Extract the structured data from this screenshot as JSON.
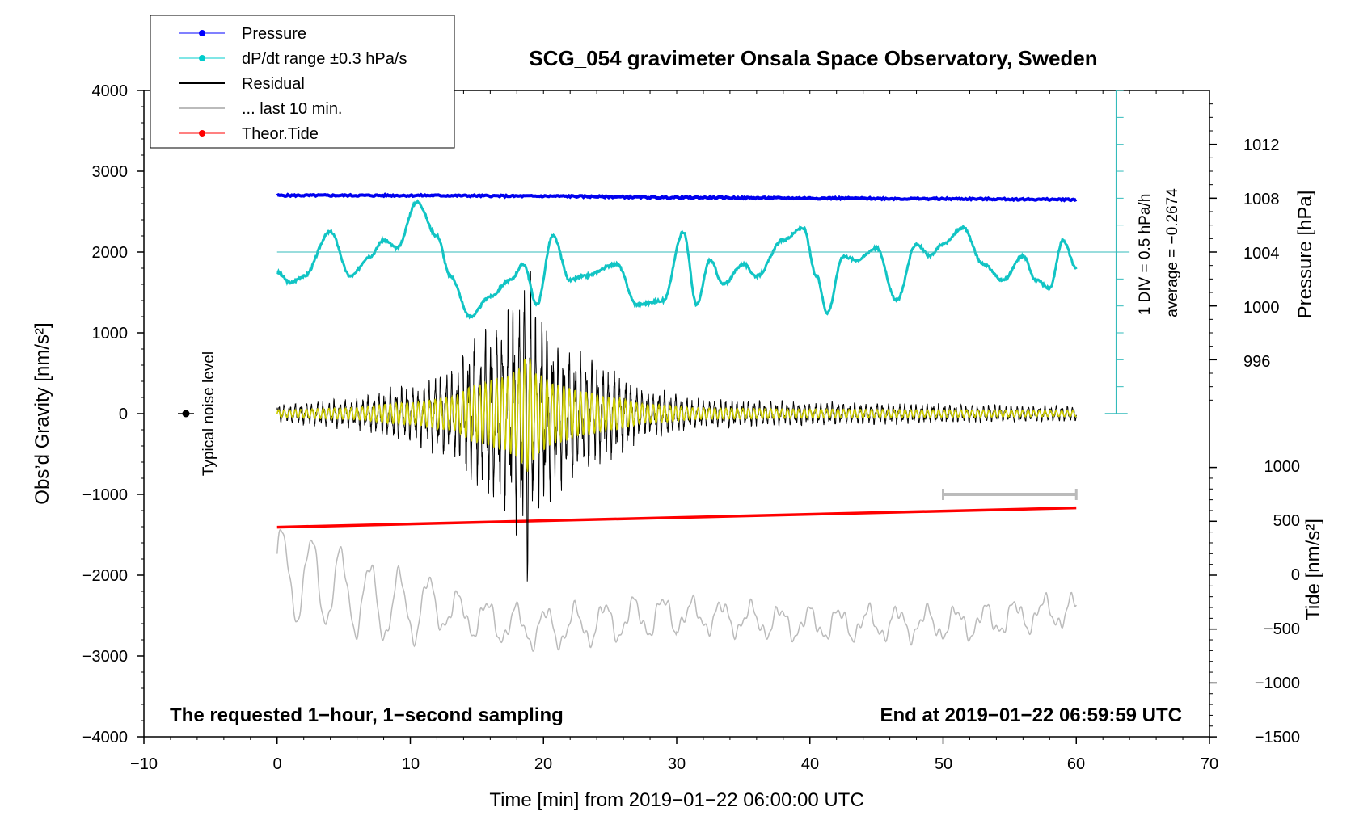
{
  "chart_data": {
    "type": "line",
    "title": "SCG_054 gravimeter Onsala Space Observatory, Sweden",
    "xlabel": "Time [min] from 2019−01−22 06:00:00 UTC",
    "ylabel": "Obs’d Gravity [nm/s²]",
    "xlim": [
      -10,
      70
    ],
    "ylim": [
      -4000,
      4000
    ],
    "x_ticks": [
      "−10",
      "0",
      "10",
      "20",
      "30",
      "40",
      "50",
      "60",
      "70"
    ],
    "y_ticks": [
      "−4000",
      "−3000",
      "−2000",
      "−1000",
      "0",
      "1000",
      "2000",
      "3000",
      "4000"
    ],
    "pressure_axis": {
      "label": "Pressure [hPa]",
      "ticks": [
        "996",
        "1000",
        "1004",
        "1008",
        "1012"
      ],
      "note_div": "1 DIV = 0.5 hPa/h",
      "note_avg": "average = −0.2674"
    },
    "tide_axis": {
      "label": "Tide [nm/s²]",
      "ticks": [
        "−1500",
        "−1000",
        "−500",
        "0",
        "500",
        "1000"
      ]
    },
    "legend": [
      {
        "label": "Pressure",
        "color": "#0000ff",
        "marker": true
      },
      {
        "label": "dP/dt range ±0.3 hPa/s",
        "color": "#00cccc",
        "marker": true
      },
      {
        "label": "Residual",
        "color": "#000000",
        "marker": false
      },
      {
        "label": "... last 10 min.",
        "color": "#bbbbbb",
        "marker": false
      },
      {
        "label": "Theor.Tide",
        "color": "#ff0000",
        "marker": true
      }
    ],
    "noise_label": "Typical noise level",
    "footer_left": "The requested 1−hour, 1−second sampling",
    "footer_right": "End at 2019−01−22 06:59:59 UTC",
    "series": [
      {
        "name": "Pressure",
        "unit": "hPa",
        "x": [
          0,
          10,
          20,
          30,
          40,
          50,
          60
        ],
        "values": [
          1008.2,
          1008.2,
          1008.15,
          1008.05,
          1008.0,
          1007.95,
          1007.9
        ]
      },
      {
        "name": "dP/dt",
        "unit": "nm/s² (plot units)",
        "x": [
          0,
          1,
          2,
          4,
          5.5,
          7,
          8,
          9,
          10.5,
          12,
          13,
          14.5,
          16,
          17.5,
          18.5,
          19.5,
          20.7,
          22,
          23,
          25.5,
          27,
          29,
          30.5,
          31.5,
          32.5,
          33.5,
          35,
          36,
          38,
          39.5,
          40.5,
          41.3,
          42.5,
          43.5,
          45,
          46.5,
          48,
          49,
          50,
          51.5,
          53,
          54.5,
          56,
          57,
          58,
          59,
          60
        ],
        "values": [
          1750,
          1620,
          1700,
          2250,
          1700,
          1950,
          2150,
          2050,
          2620,
          2200,
          1700,
          1200,
          1450,
          1650,
          1850,
          1350,
          2200,
          1650,
          1700,
          1850,
          1350,
          1400,
          2250,
          1350,
          1900,
          1600,
          1850,
          1700,
          2150,
          2300,
          1700,
          1250,
          1950,
          1900,
          2050,
          1400,
          2100,
          1950,
          2100,
          2300,
          1850,
          1650,
          1950,
          1650,
          1550,
          2150,
          1800
        ]
      },
      {
        "name": "Residual (amplitude envelope)",
        "unit": "nm/s²",
        "x": [
          0,
          5,
          10,
          13,
          15,
          17,
          18,
          18.8,
          19.5,
          21,
          23,
          25,
          28,
          32,
          40,
          50,
          60
        ],
        "values": [
          100,
          150,
          300,
          450,
          800,
          1000,
          1200,
          1600,
          1100,
          800,
          600,
          450,
          250,
          150,
          120,
          100,
          80
        ]
      },
      {
        "name": "... last 10 min.",
        "unit": "nm/s² (offset)",
        "x": [
          0,
          10,
          20,
          30,
          40,
          50,
          60
        ],
        "values": [
          -2000,
          -2400,
          -2650,
          -2500,
          -2600,
          -2600,
          -2450
        ]
      },
      {
        "name": "Theor.Tide",
        "unit": "nm/s²",
        "x": [
          0,
          60
        ],
        "values": [
          445,
          625
        ]
      }
    ],
    "last10_bar": [
      50,
      60
    ]
  }
}
